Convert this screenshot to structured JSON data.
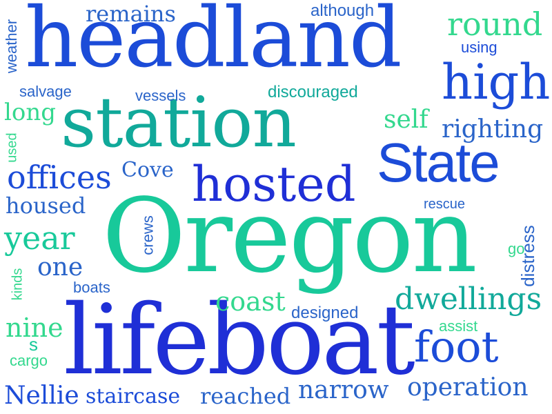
{
  "words": {
    "headland": "headland",
    "station": "station",
    "oregon": "Oregon",
    "lifeboat": "lifeboat",
    "state": "State",
    "hosted": "hosted",
    "high": "high",
    "round": "round",
    "foot": "foot",
    "dwellings": "dwellings",
    "offices": "offices",
    "coast": "coast",
    "righting": "righting",
    "remains": "remains",
    "although": "although",
    "using": "using",
    "weather": "weather",
    "salvage": "salvage",
    "vessels": "vessels",
    "discouraged": "discouraged",
    "long": "long",
    "self": "self",
    "used": "used",
    "cove": "Cove",
    "housed": "housed",
    "rescue": "rescue",
    "year": "year",
    "crews": "crews",
    "distress": "distress",
    "go": "go",
    "one": "one",
    "kinds": "kinds",
    "boats": "boats",
    "designed": "designed",
    "nine": "nine",
    "assist": "assist",
    "s": "s",
    "cargo": "cargo",
    "nellie": "Nellie",
    "staircase": "staircase",
    "reached": "reached",
    "narrow": "narrow",
    "operation": "operation"
  },
  "colors": {
    "dark_blue": "#1f2fd6",
    "blue": "#1c4cd8",
    "mid_blue": "#2a64c9",
    "teal": "#11a99a",
    "green": "#18c99a",
    "light_green": "#33d88e"
  }
}
